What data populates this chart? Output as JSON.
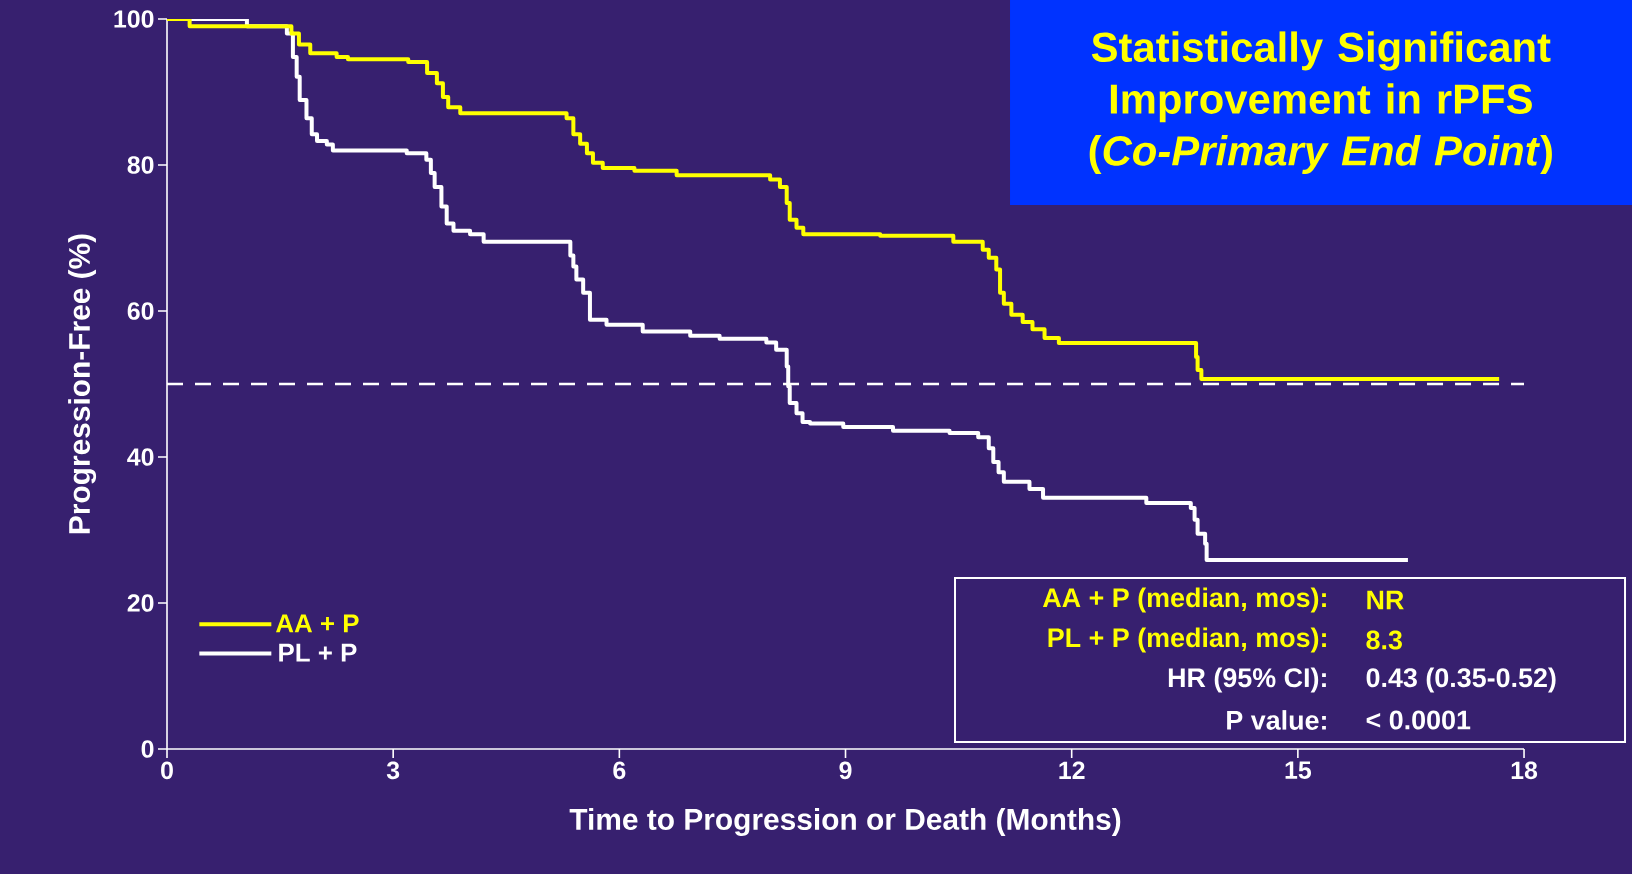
{
  "chart_data": {
    "type": "step",
    "title": "Statistically Significant Improvement in rPFS",
    "subtitle": "(*Co-Primary End Point*)",
    "xlabel": "Time to Progression or Death (Months)",
    "ylabel": "Progression-Free (%)",
    "xlim": [
      0,
      18
    ],
    "ylim": [
      0,
      100
    ],
    "xticks": [
      0,
      3,
      6,
      9,
      12,
      15,
      18
    ],
    "yticks": [
      0,
      20,
      40,
      60,
      80,
      100
    ],
    "grid": false,
    "legend": "bottom left",
    "marker": "none",
    "line_style": "solid",
    "ref_lines": [
      {
        "axis": "y",
        "value": 50,
        "color": "#ffffff",
        "line_style": "dashed"
      }
    ],
    "annotations": [
      "AA + P (median, mos):",
      "NR",
      "PL + P (median, mos):",
      "8.3",
      "HR (95% CI):",
      "0.43 (0.35-0.52)",
      "P value:",
      "< 0.0001"
    ],
    "series": [
      {
        "name": "AA + P",
        "color": "#ffff00",
        "x": [
          0,
          0.3,
          1.65,
          1.75,
          1.9,
          2.25,
          2.4,
          3.2,
          3.45,
          3.58,
          3.66,
          3.73,
          3.89,
          5.3,
          5.39,
          5.48,
          5.57,
          5.65,
          5.78,
          6.2,
          6.76,
          8.0,
          8.13,
          8.22,
          8.26,
          8.35,
          8.44,
          9.46,
          10.43,
          10.82,
          10.9,
          11.0,
          11.05,
          11.1,
          11.2,
          11.35,
          11.48,
          11.64,
          11.83,
          13.65,
          13.67,
          13.72,
          17.67
        ],
        "values": [
          100,
          99,
          98,
          96.5,
          95.3,
          94.8,
          94.5,
          94.1,
          92.6,
          91.2,
          89.3,
          87.9,
          87.1,
          86.4,
          84.2,
          82.9,
          81.6,
          80.3,
          79.6,
          79.2,
          78.6,
          78.0,
          77.0,
          74.8,
          72.5,
          71.4,
          70.5,
          70.3,
          69.5,
          68.4,
          67.3,
          65.7,
          62.5,
          61.0,
          59.5,
          58.5,
          57.5,
          56.3,
          55.6,
          53.7,
          51.9,
          50.7,
          50.7
        ]
      },
      {
        "name": "PL + P",
        "color": "#ffffff",
        "x": [
          0,
          1.06,
          1.59,
          1.67,
          1.72,
          1.76,
          1.85,
          1.92,
          1.99,
          2.12,
          2.2,
          3.18,
          3.44,
          3.5,
          3.55,
          3.64,
          3.71,
          3.8,
          4.02,
          4.2,
          5.35,
          5.39,
          5.43,
          5.52,
          5.61,
          5.83,
          6.31,
          6.94,
          7.33,
          7.95,
          8.08,
          8.22,
          8.24,
          8.26,
          8.35,
          8.43,
          8.53,
          8.97,
          9.63,
          10.38,
          10.76,
          10.9,
          10.96,
          11.03,
          11.1,
          11.44,
          11.62,
          12.99,
          13.58,
          13.63,
          13.67,
          13.77,
          13.79,
          16.46
        ],
        "values": [
          100,
          99,
          98,
          94.8,
          92.1,
          88.9,
          86.4,
          84.2,
          83.3,
          82.8,
          82.0,
          81.6,
          80.7,
          78.9,
          77.0,
          74.3,
          72.0,
          71.0,
          70.5,
          69.5,
          67.6,
          66.1,
          64.3,
          62.5,
          58.8,
          58.1,
          57.2,
          56.6,
          56.2,
          55.7,
          54.7,
          52.4,
          49.7,
          47.4,
          46.0,
          44.8,
          44.6,
          44.1,
          43.6,
          43.3,
          42.7,
          41.2,
          39.3,
          37.9,
          36.6,
          35.6,
          34.4,
          33.7,
          33.0,
          31.4,
          29.5,
          28.1,
          25.9,
          25.9
        ]
      }
    ]
  }
}
